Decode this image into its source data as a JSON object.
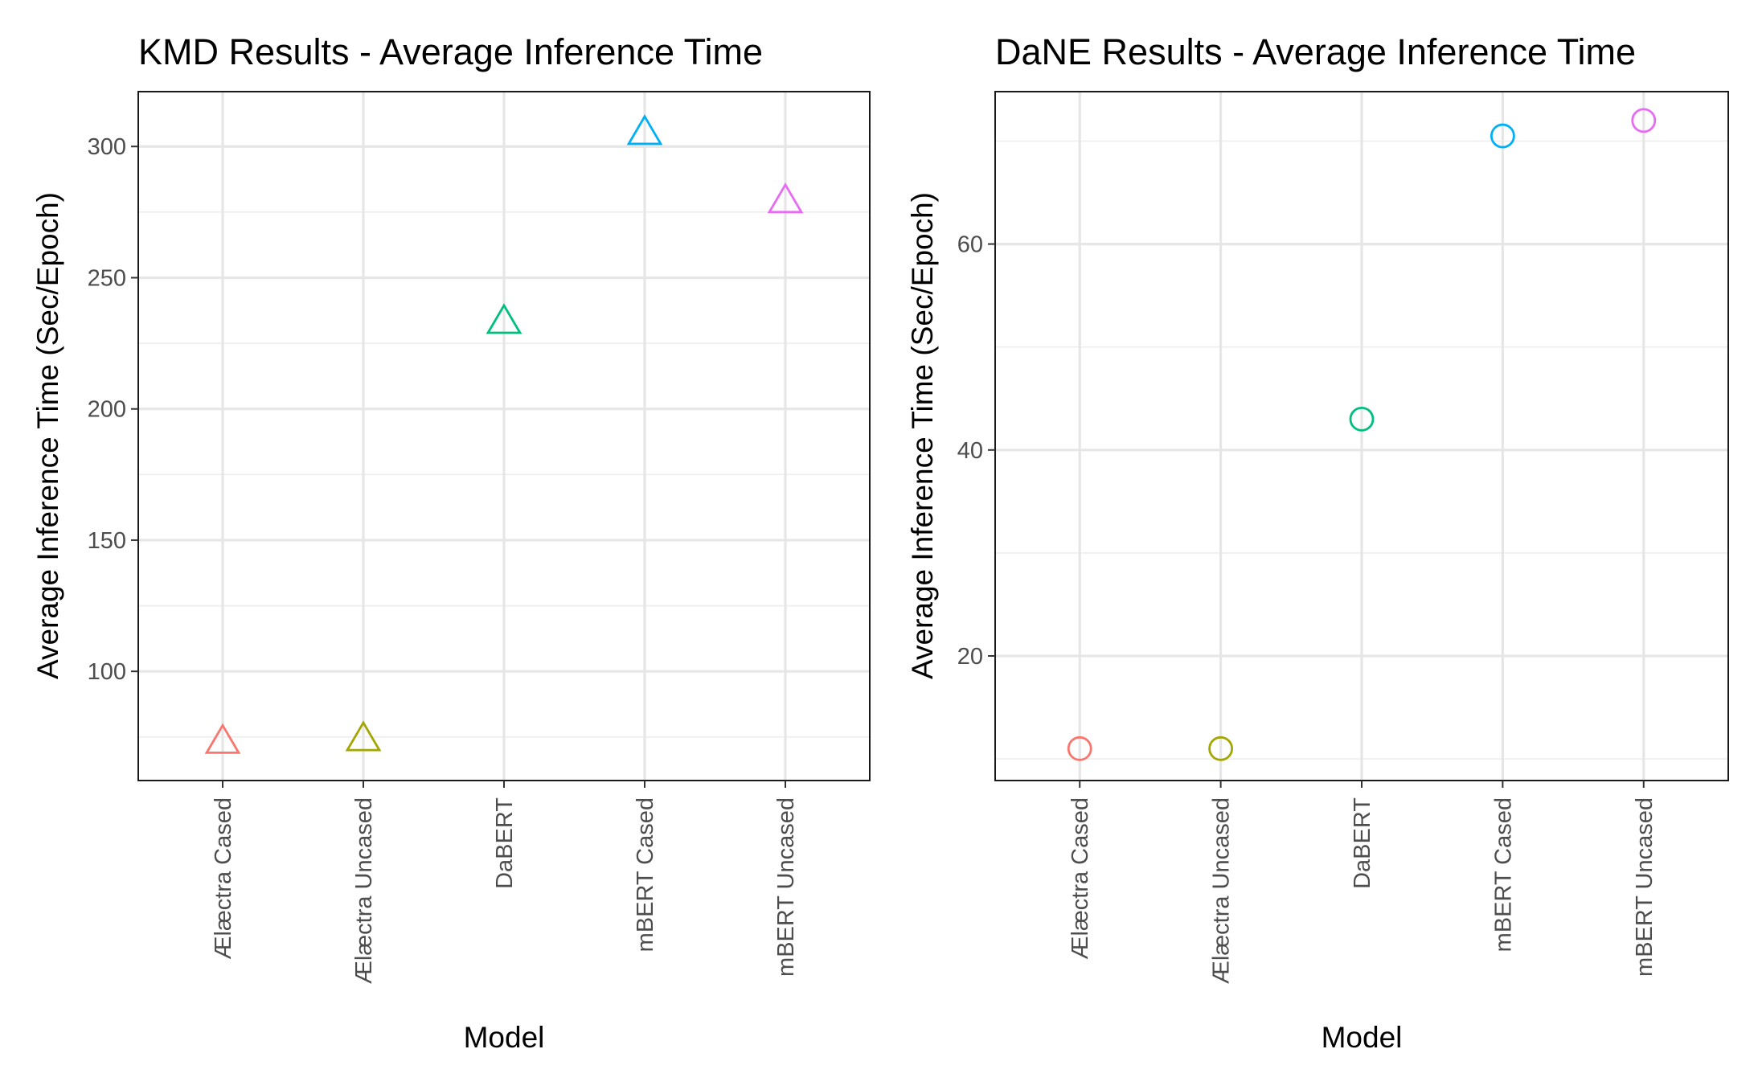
{
  "chart_data": [
    {
      "type": "scatter",
      "title": "KMD Results - Average Inference Time",
      "xlabel": "Model",
      "ylabel": "Average Inference Time (Sec/Epoch)",
      "categories": [
        "Ælæctra Cased",
        "Ælæctra Uncased",
        "DaBERT",
        "mBERT Cased",
        "mBERT Uncased"
      ],
      "values": [
        73,
        74,
        233,
        305,
        279
      ],
      "colors": [
        "#F8766D",
        "#A3A500",
        "#00BF7D",
        "#00B0F6",
        "#E76BF3"
      ],
      "marker": "open-triangle",
      "yticks": [
        100,
        150,
        200,
        250,
        300
      ],
      "ylim": [
        58.4,
        320.9
      ],
      "grid": true,
      "legend": "none"
    },
    {
      "type": "scatter",
      "title": "DaNE Results - Average Inference Time",
      "xlabel": "Model",
      "ylabel": "Average Inference Time (Sec/Epoch)",
      "categories": [
        "Ælæctra Cased",
        "Ælæctra Uncased",
        "DaBERT",
        "mBERT Cased",
        "mBERT Uncased"
      ],
      "values": [
        11,
        11,
        43,
        70.5,
        72
      ],
      "colors": [
        "#F8766D",
        "#A3A500",
        "#00BF7D",
        "#00B0F6",
        "#E76BF3"
      ],
      "marker": "open-circle",
      "yticks": [
        20,
        40,
        60
      ],
      "ylim": [
        7.9,
        74.8
      ],
      "grid": true,
      "legend": "none"
    }
  ]
}
